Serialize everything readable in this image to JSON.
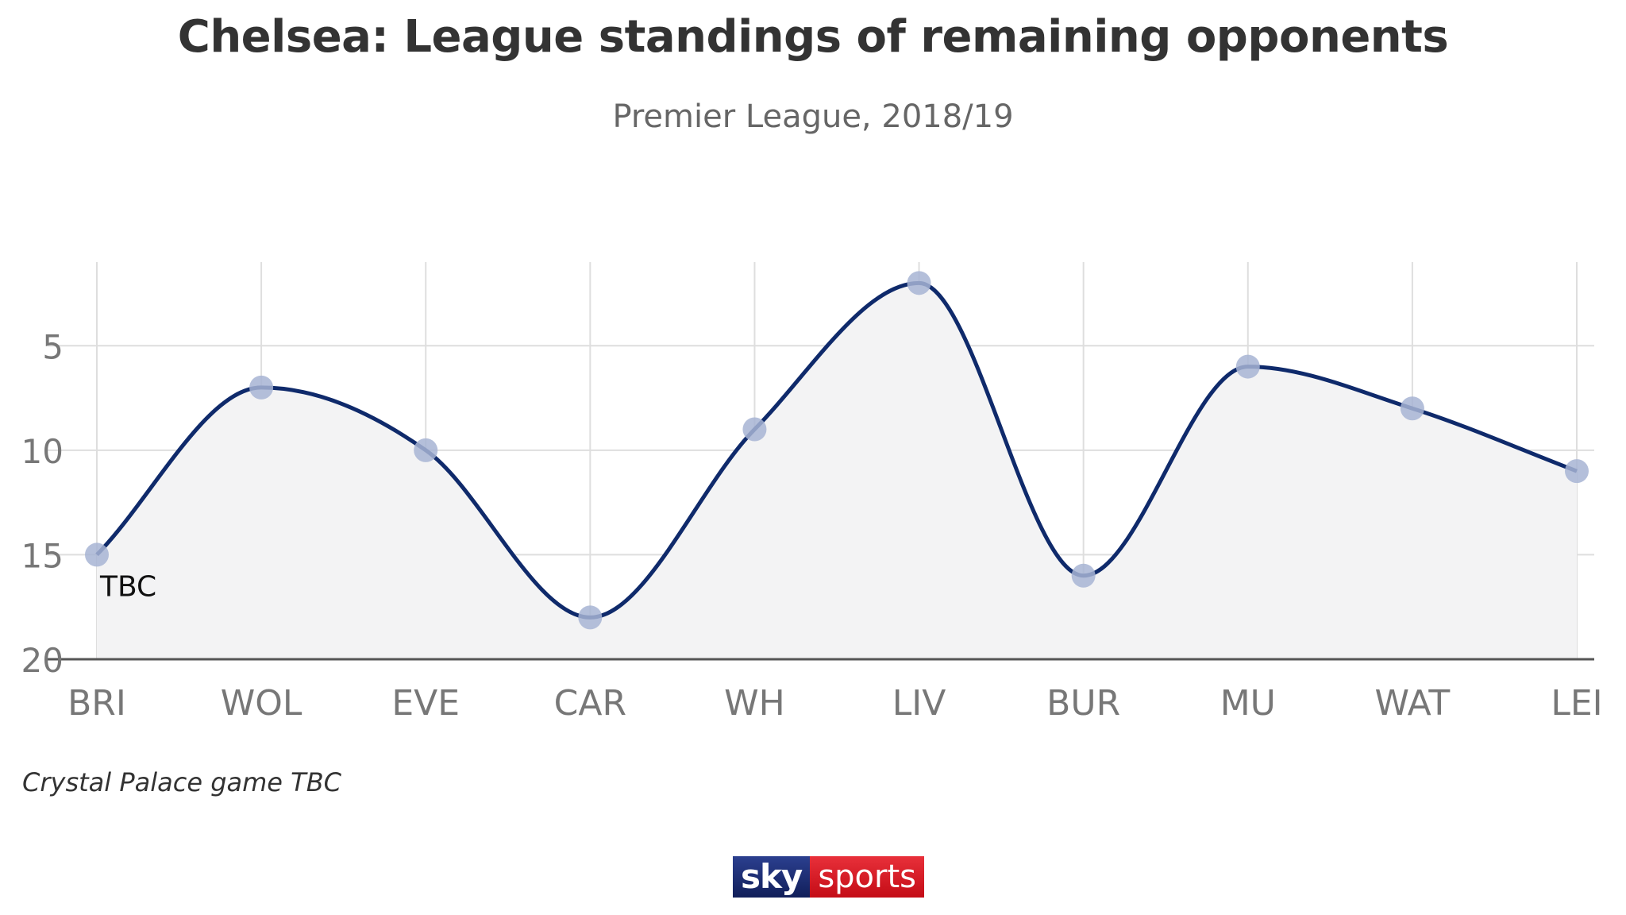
{
  "header": {
    "title": "Chelsea: League standings of remaining opponents",
    "subtitle": "Premier League, 2018/19"
  },
  "footer": {
    "note": "Crystal Palace game TBC",
    "logo_sky": "sky",
    "logo_sports": "sports"
  },
  "colors": {
    "line": "#0f2a6b",
    "marker": "#a7b4d3",
    "area": "#f3f3f4",
    "grid": "#dedede",
    "axis_text": "#777777",
    "logo_blue": "#1a2c70",
    "logo_red": "#d51a24"
  },
  "chart_data": {
    "type": "line",
    "title": "Chelsea: League standings of remaining opponents",
    "subtitle": "Premier League, 2018/19",
    "xlabel": "",
    "ylabel": "",
    "categories": [
      "BRI",
      "WOL",
      "EVE",
      "CAR",
      "WH",
      "LIV",
      "BUR",
      "MU",
      "WAT",
      "LEI"
    ],
    "values": [
      15,
      7,
      10,
      18,
      9,
      2,
      16,
      6,
      8,
      11
    ],
    "ylim": [
      20,
      1
    ],
    "y_reversed": true,
    "yticks": [
      5,
      10,
      15,
      20
    ],
    "grid": true,
    "smooth": true,
    "area_fill": true,
    "annotations": [
      {
        "category": "BRI",
        "text": "TBC"
      }
    ]
  }
}
